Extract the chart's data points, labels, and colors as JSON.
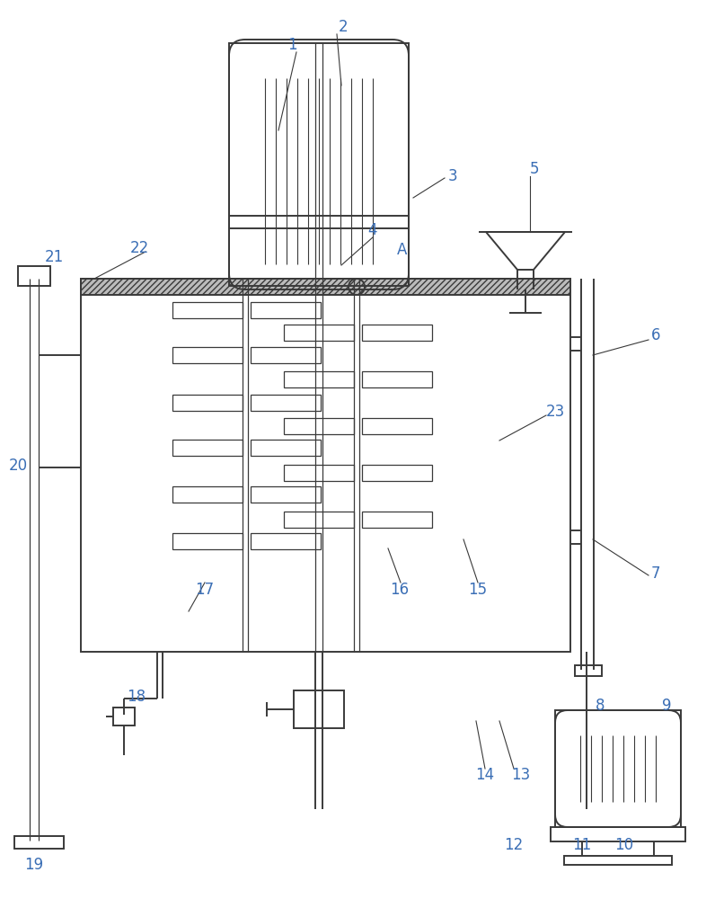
{
  "bg_color": "#ffffff",
  "lc": "#3a3a3a",
  "lw": 1.4,
  "lw_thin": 0.9,
  "label_fs": 12,
  "label_color": "#3a6eb5"
}
